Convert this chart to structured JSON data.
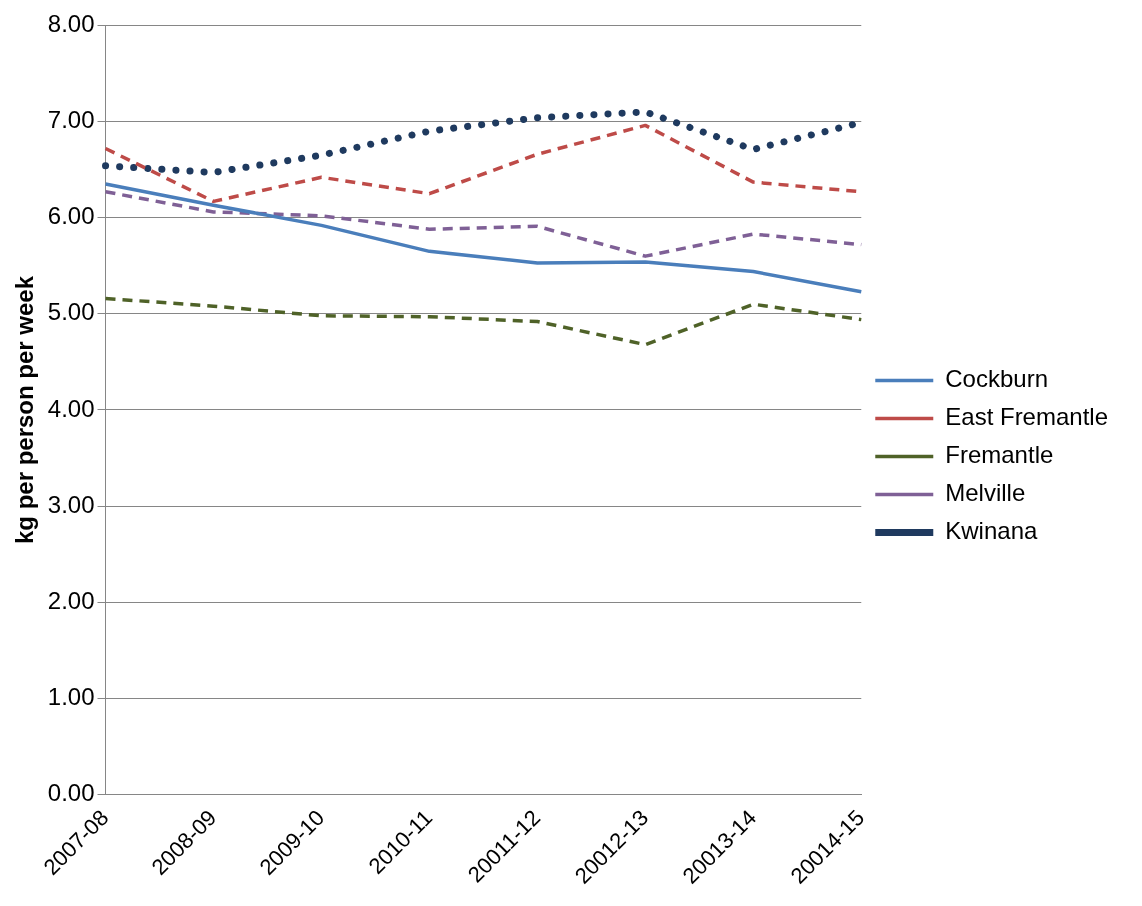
{
  "chart_data": {
    "type": "line",
    "ylabel": "kg per person per week",
    "categories": [
      "2007-08",
      "2008-09",
      "2009-10",
      "2010-11",
      "20011-12",
      "20012-13",
      "20013-14",
      "20014-15"
    ],
    "series": [
      {
        "name": "Cockburn",
        "color": "#4a7ebb",
        "line_style": "solid",
        "values": [
          6.35,
          6.13,
          5.92,
          5.65,
          5.53,
          5.54,
          5.44,
          5.23
        ]
      },
      {
        "name": "East Fremantle",
        "color": "#be4b48",
        "line_style": "dashed",
        "values": [
          6.72,
          6.17,
          6.42,
          6.25,
          6.66,
          6.96,
          6.37,
          6.27
        ]
      },
      {
        "name": "Fremantle",
        "color": "#4f6228",
        "line_style": "dashed",
        "values": [
          5.16,
          5.08,
          4.98,
          4.97,
          4.92,
          4.68,
          5.1,
          4.94
        ]
      },
      {
        "name": "Melville",
        "color": "#7f6096",
        "line_style": "dashed",
        "values": [
          6.27,
          6.06,
          6.02,
          5.88,
          5.91,
          5.6,
          5.83,
          5.72
        ]
      },
      {
        "name": "Kwinana",
        "color": "#1f3a5f",
        "line_style": "dotted",
        "values": [
          6.54,
          6.47,
          6.65,
          6.9,
          7.04,
          7.1,
          6.71,
          6.99
        ]
      }
    ],
    "ylim": [
      0,
      8
    ],
    "yticks": [
      {
        "value": 0,
        "label": "0.00"
      },
      {
        "value": 1,
        "label": "1.00"
      },
      {
        "value": 2,
        "label": "2.00"
      },
      {
        "value": 3,
        "label": "3.00"
      },
      {
        "value": 4,
        "label": "4.00"
      },
      {
        "value": 5,
        "label": "5.00"
      },
      {
        "value": 6,
        "label": "6.00"
      },
      {
        "value": 7,
        "label": "7.00"
      },
      {
        "value": 8,
        "label": "8.00"
      }
    ],
    "grid": "y",
    "legend": "right",
    "marker": "none"
  }
}
